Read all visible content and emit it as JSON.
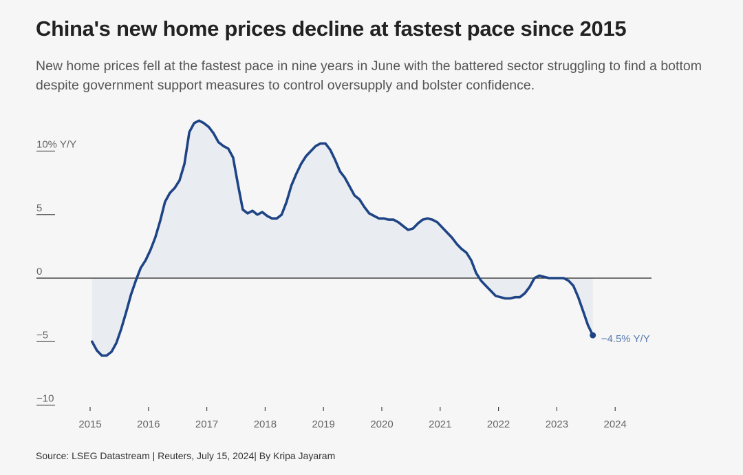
{
  "header": {
    "title": "China's new home prices decline at fastest pace since 2015",
    "subtitle": "New home prices fell at the fastest pace in nine years in June with the battered sector struggling to find a bottom despite government support measures to control oversupply and bolster confidence."
  },
  "footer": {
    "source": "Source: LSEG Datastream | Reuters, July 15, 2024| By Kripa Jayaram"
  },
  "colors": {
    "line": "#1f4485",
    "fill": "#e9edf1",
    "zero_line": "#222222",
    "end_label": "#5b7bb0"
  },
  "chart_data": {
    "type": "area",
    "title": "China's new home prices decline at fastest pace since 2015",
    "xlabel": "",
    "ylabel": "% Y/Y",
    "ylim": [
      -10,
      12
    ],
    "grid": false,
    "y_ticks": [
      {
        "value": 10,
        "label": "10% Y/Y"
      },
      {
        "value": 5,
        "label": "5"
      },
      {
        "value": 0,
        "label": "0"
      },
      {
        "value": -5,
        "label": "−5"
      },
      {
        "value": -10,
        "label": "−10"
      }
    ],
    "x_ticks": [
      "2015",
      "2016",
      "2017",
      "2018",
      "2019",
      "2020",
      "2021",
      "2022",
      "2023",
      "2024"
    ],
    "x_start": "2015-01",
    "frequency": "monthly",
    "end_annotation": "−4.5% Y/Y",
    "series": [
      {
        "name": "New home prices, % Y/Y",
        "values": [
          -5.0,
          -5.7,
          -6.1,
          -6.1,
          -5.8,
          -5.1,
          -4.0,
          -2.7,
          -1.3,
          -0.2,
          0.8,
          1.4,
          2.2,
          3.2,
          4.5,
          6.0,
          6.7,
          7.1,
          7.7,
          9.0,
          11.5,
          12.2,
          12.4,
          12.2,
          11.9,
          11.4,
          10.7,
          10.4,
          10.2,
          9.5,
          7.4,
          5.4,
          5.1,
          5.3,
          5.0,
          5.2,
          4.9,
          4.7,
          4.7,
          5.0,
          6.0,
          7.3,
          8.2,
          9.0,
          9.6,
          10.0,
          10.4,
          10.6,
          10.6,
          10.1,
          9.3,
          8.4,
          7.9,
          7.2,
          6.5,
          6.2,
          5.6,
          5.1,
          4.9,
          4.7,
          4.7,
          4.6,
          4.6,
          4.4,
          4.1,
          3.8,
          3.9,
          4.3,
          4.6,
          4.7,
          4.6,
          4.4,
          4.0,
          3.6,
          3.2,
          2.7,
          2.3,
          2.0,
          1.4,
          0.4,
          -0.2,
          -0.6,
          -1.0,
          -1.4,
          -1.5,
          -1.6,
          -1.6,
          -1.5,
          -1.5,
          -1.2,
          -0.7,
          0.0,
          0.2,
          0.1,
          0.0,
          0.0,
          0.0,
          0.0,
          -0.2,
          -0.6,
          -1.5,
          -2.6,
          -3.7,
          -4.5
        ]
      }
    ]
  }
}
